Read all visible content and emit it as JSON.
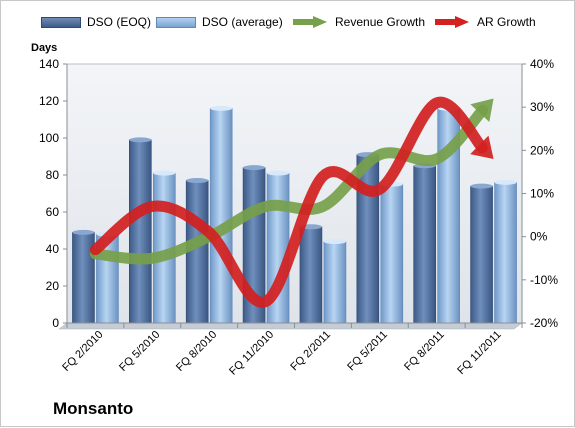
{
  "company": "Monsanto",
  "colors": {
    "dso_eoq": "#4f6d9a",
    "dso_avg": "#8fb4dd",
    "revenue_growth": "#76a04a",
    "ar_growth": "#d32020",
    "plot_bg": "#e9edf2",
    "grid": "#c9ced6"
  },
  "chart_data": {
    "type": "bar",
    "categories": [
      "FQ 2/2010",
      "FQ 5/2010",
      "FQ 8/2010",
      "FQ 11/2010",
      "FQ 2/2011",
      "FQ 5/2011",
      "FQ 8/2011",
      "FQ 11/2011"
    ],
    "series": [
      {
        "name": "DSO (EOQ)",
        "type": "bar",
        "axis": "left",
        "values": [
          49,
          99,
          77,
          84,
          52,
          91,
          85,
          74
        ]
      },
      {
        "name": "DSO (average)",
        "type": "bar",
        "axis": "left",
        "values": [
          48,
          81,
          116,
          81,
          44,
          75,
          116,
          76
        ]
      },
      {
        "name": "Revenue Growth",
        "type": "line",
        "axis": "right",
        "values": [
          -4,
          -5,
          0,
          7,
          7,
          19,
          18,
          32
        ]
      },
      {
        "name": "AR Growth",
        "type": "line",
        "axis": "right",
        "values": [
          -3,
          7,
          1,
          -15,
          14,
          11,
          31,
          18
        ]
      }
    ],
    "ylabel": "Days",
    "ylim": [
      0,
      140
    ],
    "yticks": [
      0,
      20,
      40,
      60,
      80,
      100,
      120,
      140
    ],
    "y2lim": [
      -20,
      40
    ],
    "y2ticks": [
      "-20%",
      "-10%",
      "0%",
      "10%",
      "20%",
      "30%",
      "40%"
    ],
    "legend_position": "top",
    "grid": false
  }
}
